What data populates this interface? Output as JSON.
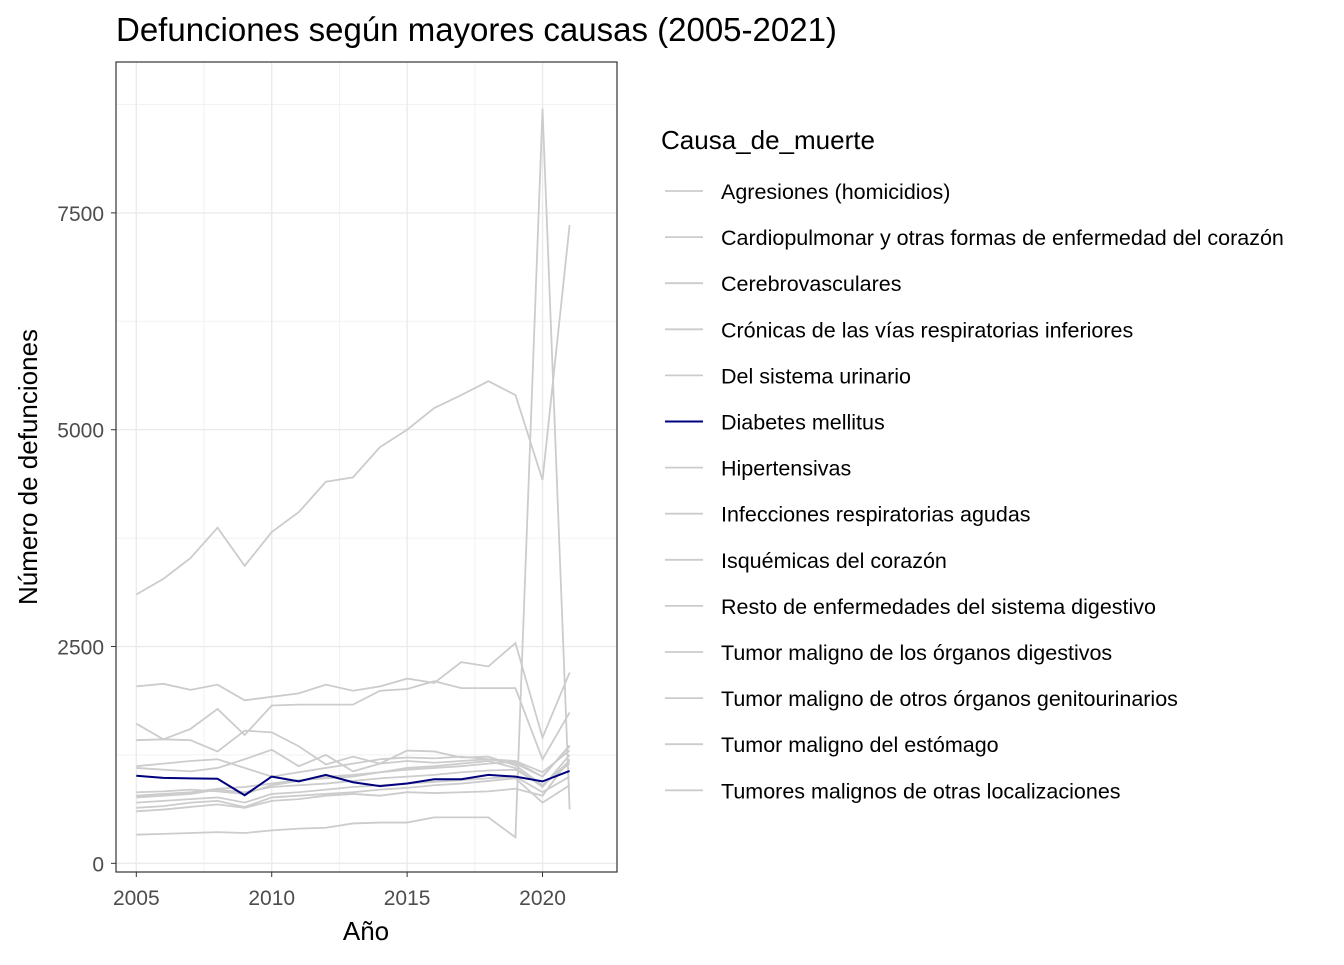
{
  "chart_data": {
    "type": "line",
    "title": "Defunciones según mayores causas (2005-2021)",
    "xlabel": "Año",
    "ylabel": "Número de defunciones",
    "xlim": [
      2004.25,
      2022.75
    ],
    "ylim": [
      -100,
      9240
    ],
    "x_ticks": [
      2005,
      2010,
      2015,
      2020
    ],
    "y_ticks": [
      0,
      2500,
      5000,
      7500
    ],
    "y_tick_labels": [
      "0",
      "2500",
      "5000",
      "7500"
    ],
    "grid": true,
    "legend_title": "Causa_de_muerte",
    "legend_position": "right",
    "highlight_color": "#00007F",
    "base_color": "#CCCCCC",
    "x": [
      2005,
      2006,
      2007,
      2008,
      2009,
      2010,
      2011,
      2012,
      2013,
      2014,
      2015,
      2016,
      2017,
      2018,
      2019,
      2020,
      2021
    ],
    "series": [
      {
        "name": "Agresiones (homicidios)",
        "highlight": false,
        "values": [
          640,
          660,
          700,
          720,
          650,
          760,
          780,
          800,
          820,
          850,
          870,
          900,
          920,
          950,
          980,
          700,
          900
        ]
      },
      {
        "name": "Cardiopulmonar y otras formas de enfermedad del corazón",
        "highlight": false,
        "values": [
          1420,
          1430,
          1420,
          1290,
          1530,
          1510,
          1350,
          1140,
          1230,
          1150,
          1180,
          1160,
          1180,
          1200,
          1180,
          1050,
          1300
        ]
      },
      {
        "name": "Cerebrovasculares",
        "highlight": false,
        "values": [
          1610,
          1430,
          1550,
          1780,
          1480,
          1820,
          1830,
          1830,
          1830,
          1990,
          2010,
          2100,
          2020,
          2020,
          2020,
          1200,
          1740
        ]
      },
      {
        "name": "Crónicas de las vías respiratorias inferiores",
        "highlight": false,
        "values": [
          1100,
          1080,
          1060,
          1100,
          1200,
          1310,
          1120,
          1250,
          1060,
          1150,
          1300,
          1290,
          1220,
          1230,
          1130,
          900,
          1150
        ]
      },
      {
        "name": "Del sistema urinario",
        "highlight": false,
        "values": [
          700,
          720,
          740,
          760,
          700,
          800,
          820,
          850,
          880,
          900,
          920,
          940,
          960,
          980,
          1000,
          820,
          1000
        ]
      },
      {
        "name": "Diabetes mellitus",
        "highlight": true,
        "values": [
          1010,
          985,
          980,
          975,
          785,
          1000,
          945,
          1020,
          935,
          890,
          920,
          970,
          970,
          1020,
          1000,
          945,
          1065
        ]
      },
      {
        "name": "Hipertensivas",
        "highlight": false,
        "values": [
          820,
          830,
          850,
          830,
          800,
          900,
          950,
          1000,
          1020,
          1050,
          1100,
          1120,
          1150,
          1180,
          1100,
          880,
          1250
        ]
      },
      {
        "name": "Infecciones respiratorias agudas",
        "highlight": false,
        "values": [
          330,
          340,
          350,
          360,
          350,
          380,
          400,
          410,
          460,
          470,
          470,
          530,
          530,
          530,
          300,
          8700,
          620
        ]
      },
      {
        "name": "Isquémicas del corazón",
        "highlight": false,
        "values": [
          3100,
          3280,
          3520,
          3870,
          3430,
          3820,
          4050,
          4400,
          4450,
          4800,
          5000,
          5250,
          5400,
          5560,
          5400,
          4420,
          7360
        ]
      },
      {
        "name": "Resto de enfermedades del sistema digestivo",
        "highlight": false,
        "values": [
          760,
          780,
          800,
          850,
          820,
          880,
          900,
          920,
          950,
          980,
          1000,
          1020,
          1050,
          1070,
          1080,
          900,
          1180
        ]
      },
      {
        "name": "Tumor maligno de los órganos digestivos",
        "highlight": false,
        "values": [
          2040,
          2070,
          2000,
          2060,
          1880,
          1920,
          1960,
          2060,
          1990,
          2040,
          2130,
          2080,
          2320,
          2270,
          2540,
          1450,
          2200
        ]
      },
      {
        "name": "Tumor maligno de otros órganos genitourinarios",
        "highlight": false,
        "values": [
          780,
          800,
          820,
          860,
          880,
          920,
          960,
          980,
          1000,
          1050,
          1080,
          1100,
          1120,
          1150,
          1170,
          1000,
          1360
        ]
      },
      {
        "name": "Tumor maligno del estómago",
        "highlight": false,
        "values": [
          1120,
          1150,
          1180,
          1200,
          1100,
          1000,
          1050,
          1100,
          1150,
          1200,
          1220,
          1210,
          1230,
          1200,
          1150,
          1000,
          1350
        ]
      },
      {
        "name": "Tumores malignos de otras localizaciones",
        "highlight": false,
        "values": [
          600,
          620,
          650,
          680,
          640,
          720,
          740,
          780,
          800,
          780,
          820,
          810,
          820,
          830,
          860,
          780,
          1200
        ]
      }
    ]
  }
}
